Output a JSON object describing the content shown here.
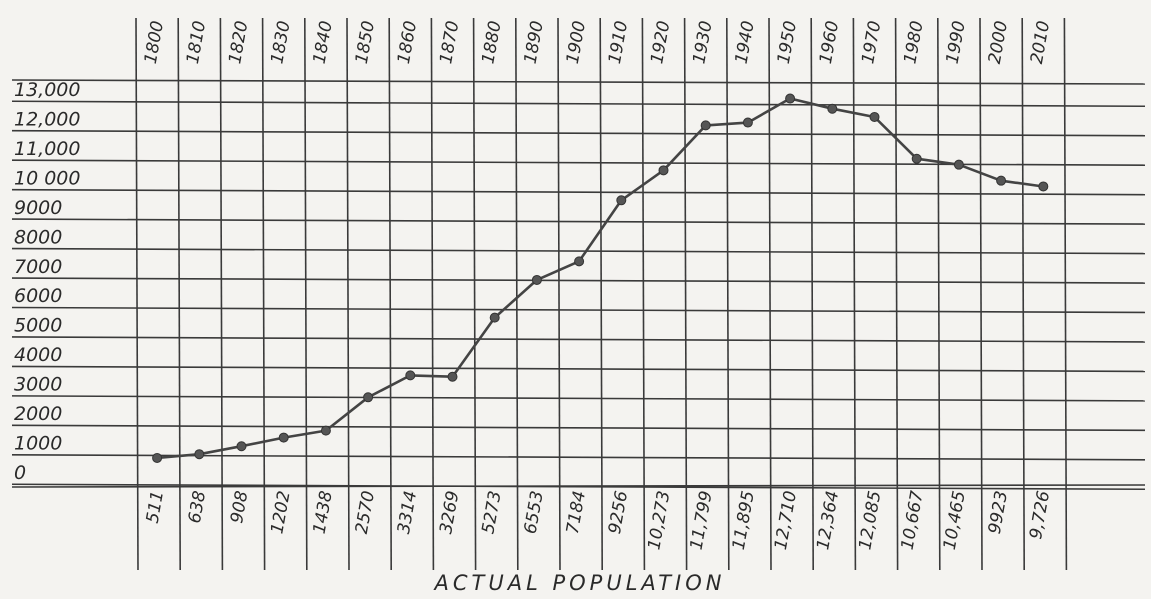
{
  "chart_data": {
    "type": "line",
    "x": [
      1800,
      1810,
      1820,
      1830,
      1840,
      1850,
      1860,
      1870,
      1880,
      1890,
      1900,
      1910,
      1920,
      1930,
      1940,
      1950,
      1960,
      1970,
      1980,
      1990,
      2000,
      2010
    ],
    "x_tick_labels": [
      "1800",
      "1810",
      "1820",
      "1830",
      "1840",
      "1850",
      "1860",
      "1870",
      "1880",
      "1890",
      "1900",
      "1910",
      "1920",
      "1930",
      "1940",
      "1950",
      "1960",
      "1970",
      "1980",
      "1990",
      "2000",
      "2010"
    ],
    "series": [
      {
        "values": [
          511,
          638,
          908,
          1202,
          1438,
          2570,
          3314,
          3269,
          5273,
          6553,
          7184,
          9256,
          10273,
          11799,
          11895,
          12710,
          12364,
          12085,
          10667,
          10465,
          9923,
          9726
        ],
        "value_labels": [
          "511",
          "638",
          "908",
          "1202",
          "1438",
          "2570",
          "3314",
          "3269",
          "5273",
          "6553",
          "7184",
          "9256",
          "10,273",
          "11,799",
          "11,895",
          "12,710",
          "12,364",
          "12,085",
          "10,667",
          "10,465",
          "9923",
          "9,726"
        ]
      }
    ],
    "y_tick_values": [
      0,
      1000,
      2000,
      3000,
      4000,
      5000,
      6000,
      7000,
      8000,
      9000,
      10000,
      11000,
      12000,
      13000
    ],
    "y_tick_labels": [
      "0",
      "1000",
      "2000",
      "3000",
      "4000",
      "5000",
      "6000",
      "7000",
      "8000",
      "9000",
      "10 000",
      "11,000",
      "12,000",
      "13,000"
    ],
    "ylim": [
      0,
      13000
    ],
    "xlabel": "ACTUAL POPULATION",
    "ylabel": "",
    "title": "",
    "grid": true,
    "style": "hand-drawn on paper",
    "colors": {
      "paper": "#f4f3f0",
      "ink": "#3a3a3a",
      "line": "#444444"
    }
  }
}
